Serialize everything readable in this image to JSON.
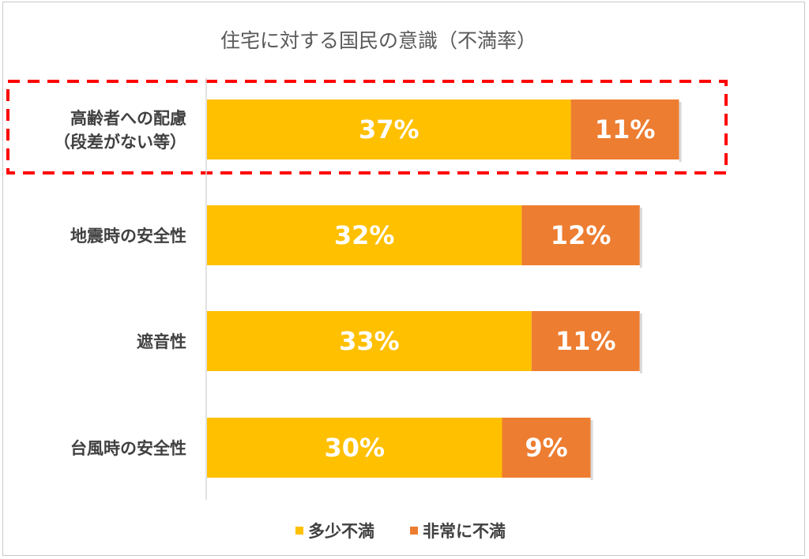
{
  "chart_data": {
    "type": "bar",
    "orientation": "horizontal",
    "stacked": true,
    "title": "住宅に対する国民の意識（不満率）",
    "categories": [
      [
        "高齢者への配慮",
        "（段差がない等）"
      ],
      [
        "地震時の安全性"
      ],
      [
        "遮音性"
      ],
      [
        "台風時の安全性"
      ]
    ],
    "series": [
      {
        "name": "多少不満",
        "color": "#FFC000",
        "values": [
          37,
          32,
          33,
          30
        ],
        "labels": [
          "37%",
          "32%",
          "33%",
          "30%"
        ]
      },
      {
        "name": "非常に不満",
        "color": "#ED7D31",
        "values": [
          11,
          12,
          11,
          9
        ],
        "labels": [
          "11%",
          "12%",
          "11%",
          "9%"
        ]
      }
    ],
    "xlim": [
      0,
      60
    ],
    "unit": "%",
    "grid": false,
    "legend_position": "bottom",
    "highlight": {
      "category_index": 0,
      "style": "red dashed box",
      "color": "#FF0000"
    }
  }
}
